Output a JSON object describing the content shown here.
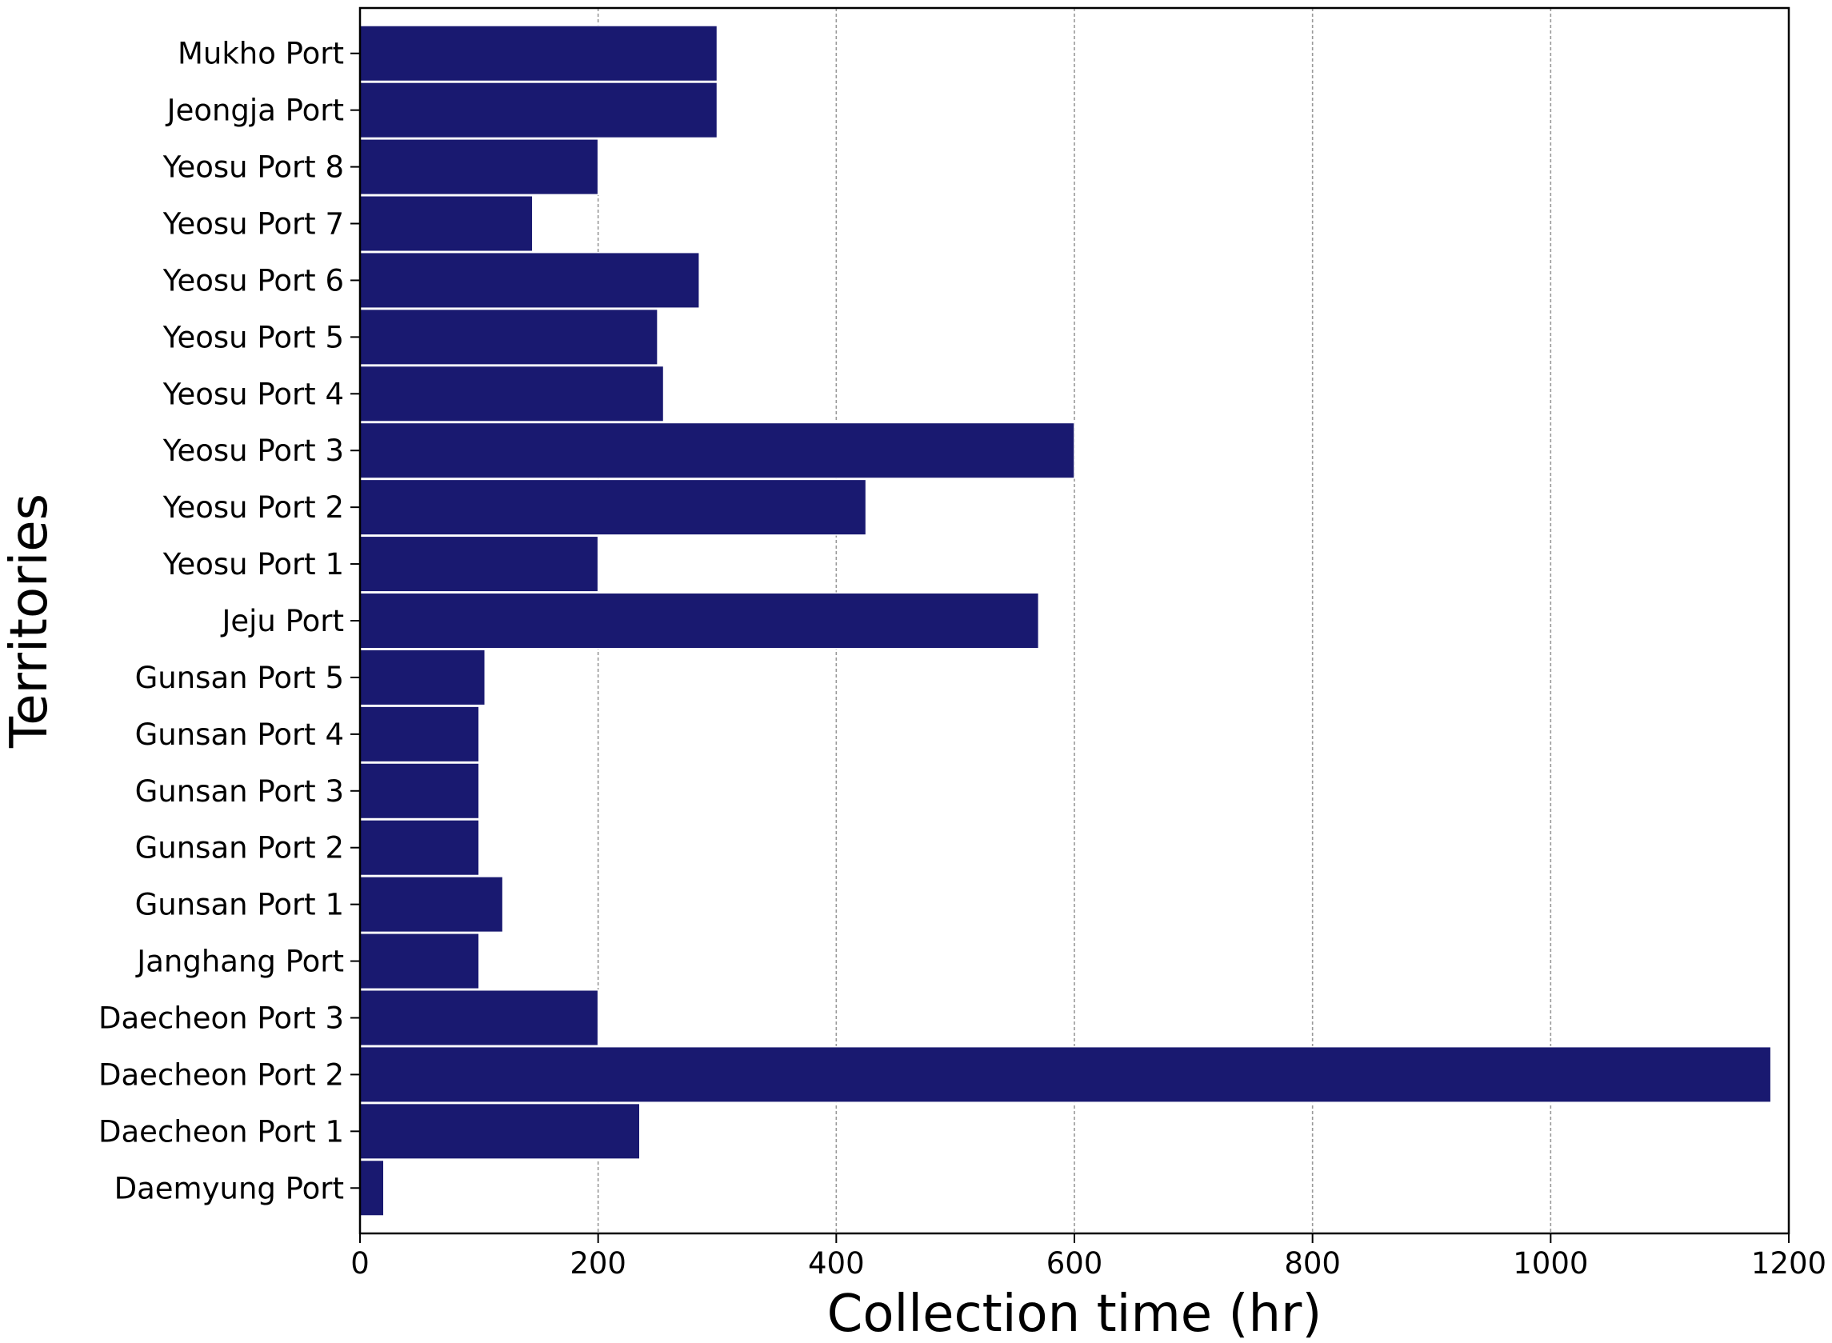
{
  "chart_data": {
    "type": "bar",
    "orientation": "horizontal",
    "categories": [
      "Daemyung Port",
      "Daecheon Port 1",
      "Daecheon Port 2",
      "Daecheon Port 3",
      "Janghang Port",
      "Gunsan Port 1",
      "Gunsan Port 2",
      "Gunsan Port 3",
      "Gunsan Port 4",
      "Gunsan Port 5",
      "Jeju Port",
      "Yeosu Port 1",
      "Yeosu Port 2",
      "Yeosu Port 3",
      "Yeosu Port 4",
      "Yeosu Port 5",
      "Yeosu Port 6",
      "Yeosu Port 7",
      "Yeosu Port 8",
      "Jeongja Port",
      "Mukho Port"
    ],
    "values": [
      20,
      235,
      1185,
      200,
      100,
      120,
      100,
      100,
      100,
      105,
      570,
      200,
      425,
      600,
      255,
      250,
      285,
      145,
      200,
      300,
      300
    ],
    "title": "",
    "xlabel": "Collection time (hr)",
    "ylabel": "Territories",
    "xlim": [
      0,
      1200
    ],
    "xticks": [
      0,
      200,
      400,
      600,
      800,
      1000,
      1200
    ],
    "grid": "x-axis dashed",
    "legend": "none",
    "bar_color": "#191970",
    "grid_color": "#999999"
  }
}
